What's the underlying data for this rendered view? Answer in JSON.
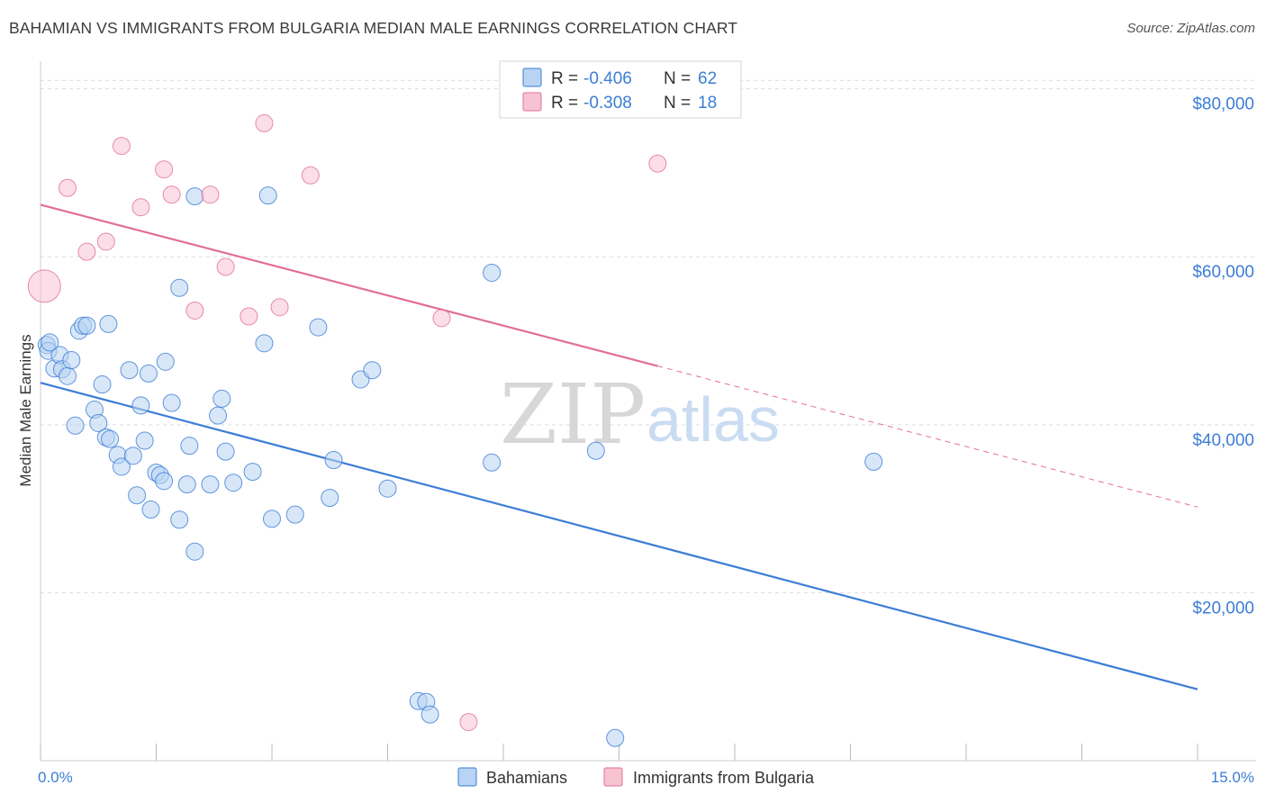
{
  "header": {
    "title": "BAHAMIAN VS IMMIGRANTS FROM BULGARIA MEDIAN MALE EARNINGS CORRELATION CHART",
    "source": "Source: ZipAtlas.com"
  },
  "watermark": {
    "zip": "ZIP",
    "atlas": "atlas"
  },
  "colors": {
    "blue": "#3c7dd6",
    "blue_fill": "#b8d3f3",
    "pink": "#e26f96",
    "pink_fill": "#f7c3d3",
    "grid": "#dddddd"
  },
  "legend": {
    "rows": [
      {
        "r_label": "R =",
        "r_value": "-0.406",
        "n_label": "N =",
        "n_value": "62"
      },
      {
        "r_label": "R =",
        "r_value": "-0.308",
        "n_label": "N =",
        "n_value": "18"
      }
    ]
  },
  "bottom_legend": [
    "Bahamians",
    "Immigrants from Bulgaria"
  ],
  "chart_data": {
    "type": "scatter",
    "title": "BAHAMIAN VS IMMIGRANTS FROM BULGARIA MEDIAN MALE EARNINGS CORRELATION CHART",
    "xlabel": "",
    "ylabel": "Median Male Earnings",
    "xlim": [
      0,
      15
    ],
    "ylim": [
      0,
      82000
    ],
    "x_tick_labels": [
      {
        "value": 0,
        "label": "0.0%"
      },
      {
        "value": 15,
        "label": "15.0%"
      }
    ],
    "y_tick_labels": [
      {
        "value": 20000,
        "label": "$20,000"
      },
      {
        "value": 40000,
        "label": "$40,000"
      },
      {
        "value": 60000,
        "label": "$60,000"
      },
      {
        "value": 80000,
        "label": "$80,000"
      }
    ],
    "grid": true,
    "series": [
      {
        "name": "Bahamians",
        "color": "#3c7dd6",
        "points": [
          [
            0.08,
            49500
          ],
          [
            0.1,
            48800
          ],
          [
            0.18,
            46700
          ],
          [
            0.25,
            48300
          ],
          [
            0.28,
            46600
          ],
          [
            0.35,
            45800
          ],
          [
            0.4,
            47700
          ],
          [
            0.45,
            39900
          ],
          [
            0.5,
            51200
          ],
          [
            0.55,
            51800
          ],
          [
            0.6,
            51800
          ],
          [
            0.7,
            41800
          ],
          [
            0.75,
            40200
          ],
          [
            0.8,
            44800
          ],
          [
            0.85,
            38500
          ],
          [
            0.9,
            38300
          ],
          [
            1.0,
            36400
          ],
          [
            1.05,
            35000
          ],
          [
            0.88,
            52000
          ],
          [
            1.15,
            46500
          ],
          [
            1.2,
            36300
          ],
          [
            1.25,
            31600
          ],
          [
            1.3,
            42300
          ],
          [
            1.35,
            38100
          ],
          [
            1.4,
            46100
          ],
          [
            1.43,
            29900
          ],
          [
            1.5,
            34300
          ],
          [
            1.55,
            34000
          ],
          [
            1.6,
            33300
          ],
          [
            1.62,
            47500
          ],
          [
            1.7,
            42600
          ],
          [
            1.8,
            28700
          ],
          [
            1.9,
            32900
          ],
          [
            1.93,
            37500
          ],
          [
            2.0,
            24900
          ],
          [
            2.2,
            32900
          ],
          [
            2.3,
            41100
          ],
          [
            2.35,
            43100
          ],
          [
            2.4,
            36800
          ],
          [
            2.5,
            33100
          ],
          [
            2.75,
            34400
          ],
          [
            2.9,
            49700
          ],
          [
            3.0,
            28800
          ],
          [
            3.3,
            29300
          ],
          [
            3.6,
            51600
          ],
          [
            3.75,
            31300
          ],
          [
            3.8,
            35800
          ],
          [
            4.15,
            45400
          ],
          [
            4.3,
            46500
          ],
          [
            4.5,
            32400
          ],
          [
            1.8,
            56300
          ],
          [
            2.0,
            67200
          ],
          [
            2.95,
            67300
          ],
          [
            5.85,
            58100
          ],
          [
            5.85,
            35500
          ],
          [
            7.2,
            36900
          ],
          [
            10.8,
            35600
          ],
          [
            4.9,
            7100
          ],
          [
            5.0,
            7000
          ],
          [
            5.05,
            5500
          ],
          [
            7.45,
            2700
          ],
          [
            0.12,
            49800
          ]
        ]
      },
      {
        "name": "Immigrants from Bulgaria",
        "color": "#e26f96",
        "points": [
          [
            0.05,
            56500
          ],
          [
            0.35,
            68200
          ],
          [
            0.6,
            60600
          ],
          [
            0.85,
            61800
          ],
          [
            1.05,
            73200
          ],
          [
            1.3,
            65900
          ],
          [
            1.6,
            70400
          ],
          [
            1.7,
            67400
          ],
          [
            2.0,
            53600
          ],
          [
            2.2,
            67400
          ],
          [
            2.4,
            58800
          ],
          [
            2.7,
            52900
          ],
          [
            2.9,
            75900
          ],
          [
            3.1,
            54000
          ],
          [
            3.5,
            69700
          ],
          [
            5.2,
            52700
          ],
          [
            5.55,
            4600
          ],
          [
            8.0,
            71100
          ]
        ]
      }
    ],
    "trendlines": [
      {
        "series": "Bahamians",
        "x": [
          0,
          15
        ],
        "y": [
          45000,
          8500
        ],
        "style": "solid"
      },
      {
        "series": "Immigrants from Bulgaria",
        "x": [
          0,
          8.0
        ],
        "y": [
          66200,
          47000
        ],
        "style": "solid"
      },
      {
        "series": "Immigrants from Bulgaria",
        "x": [
          8.0,
          15
        ],
        "y": [
          47000,
          30200
        ],
        "style": "dashed"
      }
    ]
  }
}
